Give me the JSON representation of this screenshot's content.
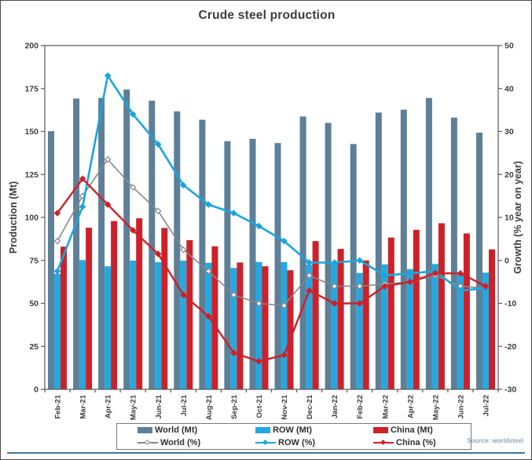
{
  "chart_data": {
    "type": "combo-grouped-bar-and-line",
    "title": "Crude steel production",
    "source_note": "Source: worldsteel",
    "categories": [
      "Feb-21",
      "Mar-21",
      "Apr-21",
      "May-21",
      "Jun-21",
      "Jul-21",
      "Aug-21",
      "Sep-21",
      "Oct-21",
      "Nov-21",
      "Dec-21",
      "Jan-22",
      "Feb-22",
      "Mar-22",
      "Apr-22",
      "May-22",
      "Jun-22",
      "Jul-22"
    ],
    "bar_series": [
      {
        "name": "World (Mt)",
        "axis": "left",
        "color": "#5d7f97",
        "values": [
          150.2,
          169.2,
          169.5,
          174.4,
          167.9,
          161.7,
          156.8,
          144.4,
          145.7,
          143.3,
          158.7,
          155.0,
          142.7,
          161.0,
          162.7,
          169.5,
          158.1,
          149.3
        ]
      },
      {
        "name": "ROW (Mt)",
        "axis": "left",
        "color": "#25a8e0",
        "values": [
          67.2,
          75.2,
          71.6,
          74.9,
          74.0,
          74.9,
          73.6,
          70.6,
          74.1,
          74.0,
          72.5,
          73.3,
          67.7,
          72.7,
          69.9,
          72.9,
          67.4,
          67.9
        ]
      },
      {
        "name": "China (Mt)",
        "axis": "left",
        "color": "#cd2129",
        "values": [
          83.0,
          94.0,
          97.9,
          99.5,
          93.9,
          86.8,
          83.2,
          73.8,
          71.6,
          69.3,
          86.2,
          81.7,
          75.0,
          88.3,
          92.8,
          96.6,
          90.7,
          81.4
        ]
      }
    ],
    "line_series": [
      {
        "name": "World (%)",
        "axis": "right",
        "color": "#85878a",
        "width": 1.6,
        "marker": "open-diamond",
        "values": [
          4.5,
          15,
          23.5,
          17,
          11.5,
          2.5,
          -2.5,
          -8,
          -10,
          -10.5,
          -3.5,
          -6,
          -6,
          -5.5,
          -5,
          -3.5,
          -6,
          -6.5
        ]
      },
      {
        "name": "ROW (%)",
        "axis": "right",
        "color": "#1ba5dc",
        "width": 2.6,
        "marker": "filled-diamond",
        "values": [
          -2.5,
          12.5,
          43,
          34,
          27,
          17.5,
          13,
          11,
          8,
          4.5,
          -0.5,
          -0.5,
          0,
          -3.5,
          -3,
          -2.5,
          -7,
          -6.5
        ]
      },
      {
        "name": "China (%)",
        "axis": "right",
        "color": "#cd2129",
        "width": 2.4,
        "marker": "filled-diamond",
        "values": [
          11,
          19,
          13,
          7,
          1.5,
          -8,
          -13,
          -21.5,
          -23.5,
          -22,
          -7,
          -10,
          -10,
          -6,
          -5,
          -3,
          -3,
          -6
        ]
      }
    ],
    "left_axis": {
      "label": "Production (Mt)",
      "min": 0,
      "max": 200,
      "step": 25
    },
    "right_axis": {
      "label": "Growth (% year on year)",
      "min": -30,
      "max": 50,
      "step": 10
    },
    "grid": false,
    "legend_position": "bottom"
  },
  "colors": {
    "frame": "#58595b",
    "tick_text": "#3d3d3d",
    "title_text": "#3c3c3c",
    "source_text": "#8fa6ba",
    "bottom_rule": "#44749f"
  }
}
